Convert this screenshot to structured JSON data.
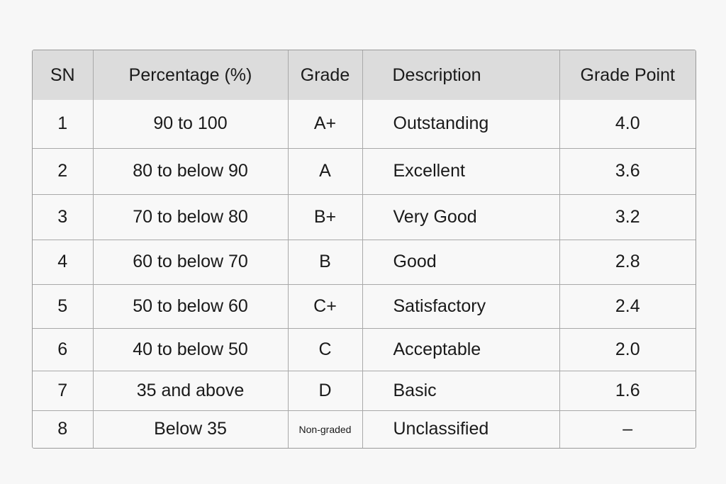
{
  "table": {
    "headers": {
      "sn": "SN",
      "percentage": "Percentage (%)",
      "grade": "Grade",
      "description": "Description",
      "grade_point": "Grade Point"
    },
    "rows": [
      {
        "sn": "1",
        "percentage": "90 to 100",
        "grade": "A+",
        "description": "Outstanding",
        "grade_point": "4.0"
      },
      {
        "sn": "2",
        "percentage": "80 to below 90",
        "grade": "A",
        "description": "Excellent",
        "grade_point": "3.6"
      },
      {
        "sn": "3",
        "percentage": "70 to below 80",
        "grade": "B+",
        "description": "Very Good",
        "grade_point": "3.2"
      },
      {
        "sn": "4",
        "percentage": "60 to below 70",
        "grade": "B",
        "description": "Good",
        "grade_point": "2.8"
      },
      {
        "sn": "5",
        "percentage": "50 to below 60",
        "grade": "C+",
        "description": "Satisfactory",
        "grade_point": "2.4"
      },
      {
        "sn": "6",
        "percentage": "40 to below 50",
        "grade": "C",
        "description": "Acceptable",
        "grade_point": "2.0"
      },
      {
        "sn": "7",
        "percentage": "35 and above",
        "grade": "D",
        "description": "Basic",
        "grade_point": "1.6"
      },
      {
        "sn": "8",
        "percentage": "Below 35",
        "grade": "Non-graded",
        "description": "Unclassified",
        "grade_point": "–"
      }
    ]
  },
  "colors": {
    "header_bg": "#dcdcdc",
    "cell_bg": "#f8f8f8",
    "border": "#a9a9a9",
    "page_bg": "#f7f7f7",
    "text": "#1a1a1a"
  }
}
